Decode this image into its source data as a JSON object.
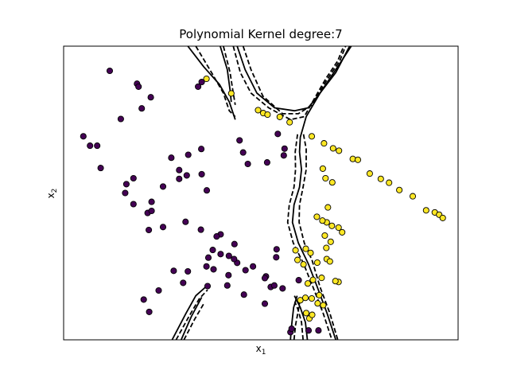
{
  "chart_data": {
    "type": "scatter",
    "title": "Polynomial Kernel degree:7",
    "xlabel_main": "x",
    "xlabel_sub": "1",
    "ylabel_main": "x",
    "ylabel_sub": "2",
    "xlim": [
      0,
      100
    ],
    "ylim": [
      0,
      100
    ],
    "xticks": [],
    "yticks": [],
    "grid": false,
    "colors": {
      "class_0": "#440154",
      "class_1": "#fde725",
      "edge": "#000000",
      "boundary": "#000000"
    },
    "series": [
      {
        "points": [
          [
            11.7,
            91.6
          ],
          [
            18.6,
            87.2
          ],
          [
            14.5,
            75.2
          ],
          [
            5.0,
            69.3
          ],
          [
            6.7,
            66.1
          ],
          [
            8.5,
            66.1
          ],
          [
            9.4,
            58.5
          ],
          [
            19.0,
            86.2
          ],
          [
            19.8,
            78.8
          ],
          [
            34.1,
            86.2
          ],
          [
            35.0,
            87.8
          ],
          [
            34.9,
            65.0
          ],
          [
            31.6,
            63.0
          ],
          [
            27.3,
            62.0
          ],
          [
            44.6,
            67.9
          ],
          [
            46.7,
            59.9
          ],
          [
            45.5,
            63.8
          ],
          [
            54.3,
            70.1
          ],
          [
            56.0,
            65.1
          ],
          [
            55.8,
            62.8
          ],
          [
            51.6,
            60.4
          ],
          [
            22.1,
            82.6
          ],
          [
            17.7,
            55.0
          ],
          [
            15.9,
            53.0
          ],
          [
            15.6,
            50.0
          ],
          [
            25.2,
            52.2
          ],
          [
            29.3,
            54.8
          ],
          [
            36.3,
            50.9
          ],
          [
            21.3,
            43.2
          ],
          [
            17.7,
            46.2
          ],
          [
            22.3,
            47.0
          ],
          [
            22.3,
            43.9
          ],
          [
            25.2,
            38.4
          ],
          [
            30.9,
            40.2
          ],
          [
            34.8,
            37.5
          ],
          [
            39.8,
            35.9
          ],
          [
            43.3,
            32.6
          ],
          [
            21.6,
            37.4
          ],
          [
            38.8,
            35.2
          ],
          [
            37.8,
            30.6
          ],
          [
            39.8,
            29.2
          ],
          [
            41.9,
            28.6
          ],
          [
            36.7,
            28.0
          ],
          [
            44.0,
            26.2
          ],
          [
            41.8,
            22.0
          ],
          [
            48.0,
            25.0
          ],
          [
            38.0,
            24.0
          ],
          [
            43.2,
            27.5
          ],
          [
            46.1,
            23.7
          ],
          [
            51.3,
            21.6
          ],
          [
            53.9,
            28.1
          ],
          [
            57.5,
            2.6
          ],
          [
            64.6,
            3.2
          ],
          [
            59.6,
            20.3
          ],
          [
            52.5,
            18.0
          ],
          [
            55.5,
            17.5
          ],
          [
            36.5,
            18.3
          ],
          [
            41.5,
            18.5
          ],
          [
            51.0,
            21.0
          ],
          [
            30.3,
            19.4
          ],
          [
            36.2,
            25.0
          ],
          [
            31.5,
            23.3
          ],
          [
            20.3,
            13.7
          ],
          [
            21.7,
            9.5
          ],
          [
            57.8,
            3.8
          ],
          [
            62.1,
            3.2
          ],
          [
            54.0,
            30.8
          ],
          [
            45.7,
            15.4
          ],
          [
            51.0,
            12.3
          ],
          [
            24.1,
            16.8
          ],
          [
            27.9,
            23.5
          ],
          [
            35.0,
            56.4
          ],
          [
            31.2,
            56.0
          ],
          [
            29.3,
            57.8
          ],
          [
            53.4,
            18.5
          ]
        ]
      },
      {
        "points": [
          [
            36.2,
            88.9
          ],
          [
            42.5,
            83.9
          ],
          [
            49.3,
            78.2
          ],
          [
            50.6,
            77.2
          ],
          [
            51.7,
            76.7
          ],
          [
            54.8,
            75.9
          ],
          [
            57.3,
            74.1
          ],
          [
            62.9,
            69.3
          ],
          [
            66.0,
            66.9
          ],
          [
            68.3,
            65.2
          ],
          [
            69.8,
            64.4
          ],
          [
            73.3,
            61.6
          ],
          [
            74.6,
            61.3
          ],
          [
            77.6,
            56.6
          ],
          [
            80.4,
            54.8
          ],
          [
            82.5,
            53.5
          ],
          [
            85.1,
            51.0
          ],
          [
            88.5,
            48.9
          ],
          [
            91.9,
            44.1
          ],
          [
            94.1,
            43.4
          ],
          [
            95.2,
            42.6
          ],
          [
            96.1,
            41.5
          ],
          [
            65.7,
            58.3
          ],
          [
            66.4,
            55.0
          ],
          [
            68.1,
            53.6
          ],
          [
            67.0,
            45.1
          ],
          [
            66.7,
            40.0
          ],
          [
            65.6,
            40.6
          ],
          [
            64.2,
            41.9
          ],
          [
            66.2,
            35.5
          ],
          [
            68.0,
            38.8
          ],
          [
            69.7,
            38.2
          ],
          [
            70.6,
            36.6
          ],
          [
            67.7,
            33.4
          ],
          [
            66.6,
            31.3
          ],
          [
            66.7,
            27.5
          ],
          [
            62.6,
            29.6
          ],
          [
            61.4,
            31.0
          ],
          [
            58.8,
            30.5
          ],
          [
            59.3,
            27.2
          ],
          [
            60.8,
            25.7
          ],
          [
            64.3,
            26.3
          ],
          [
            67.5,
            26.7
          ],
          [
            69.7,
            19.7
          ],
          [
            65.4,
            21.1
          ],
          [
            63.2,
            20.4
          ],
          [
            61.9,
            19.2
          ],
          [
            62.9,
            14.1
          ],
          [
            64.4,
            12.4
          ],
          [
            65.8,
            11.8
          ],
          [
            62.3,
            7.3
          ],
          [
            61.5,
            9.1
          ],
          [
            63.0,
            8.5
          ],
          [
            60.0,
            13.5
          ],
          [
            61.3,
            14.3
          ],
          [
            64.8,
            15.2
          ],
          [
            68.9,
            20.0
          ]
        ]
      }
    ],
    "decision_lines": [
      {
        "style": "solid",
        "segments": [
          [
            [
              31.5,
              100
            ],
            [
              35.5,
              93
            ],
            [
              39.5,
              87
            ],
            [
              42.0,
              81
            ],
            [
              43.5,
              75
            ]
          ],
          [
            [
              39.7,
              100
            ],
            [
              41.5,
              92
            ],
            [
              42.2,
              85
            ],
            [
              42.5,
              81
            ]
          ],
          [
            [
              44.0,
              100
            ],
            [
              46.0,
              92
            ],
            [
              49.0,
              84
            ],
            [
              53.5,
              79
            ],
            [
              58.5,
              78
            ],
            [
              62.0,
              79
            ],
            [
              65.0,
              84
            ],
            [
              69.0,
              91
            ],
            [
              72.5,
              100
            ]
          ],
          [
            [
              72.9,
              100
            ],
            [
              69.0,
              92
            ],
            [
              65.0,
              84
            ],
            [
              61.5,
              76
            ],
            [
              60.0,
              69
            ],
            [
              59.8,
              64
            ],
            [
              60.3,
              58
            ],
            [
              59.8,
              52
            ],
            [
              58.4,
              46
            ],
            [
              58.0,
              40
            ],
            [
              59.5,
              33
            ],
            [
              62.0,
              26
            ],
            [
              64.3,
              18
            ],
            [
              66.8,
              9
            ],
            [
              69.0,
              0
            ]
          ],
          [
            [
              27.5,
              0
            ],
            [
              31.0,
              9
            ],
            [
              33.5,
              15
            ],
            [
              36.0,
              18
            ]
          ],
          [
            [
              29.8,
              0
            ],
            [
              32.4,
              8
            ],
            [
              35.0,
              14.5
            ]
          ],
          [
            [
              57.5,
              0
            ],
            [
              57.8,
              5
            ],
            [
              58.3,
              11
            ],
            [
              59.2,
              15
            ]
          ],
          [
            [
              61.8,
              0
            ],
            [
              61.3,
              6
            ],
            [
              60.0,
              11
            ],
            [
              58.5,
              15
            ]
          ]
        ]
      },
      {
        "style": "dashed",
        "segments": [
          [
            [
              33.5,
              100
            ],
            [
              37.5,
              91
            ],
            [
              40.5,
              84
            ],
            [
              42.0,
              78
            ],
            [
              43.5,
              76
            ]
          ],
          [
            [
              40.5,
              100
            ],
            [
              42.2,
              91
            ],
            [
              43.0,
              84
            ],
            [
              43.5,
              80
            ]
          ],
          [
            [
              45.5,
              100
            ],
            [
              47.5,
              92
            ],
            [
              50.5,
              83
            ],
            [
              55.5,
              77
            ],
            [
              59.5,
              77
            ],
            [
              63.0,
              80
            ],
            [
              66.5,
              88
            ],
            [
              70.0,
              95
            ],
            [
              71.5,
              100
            ]
          ],
          [
            [
              43.0,
              100
            ],
            [
              44.8,
              91
            ],
            [
              47.5,
              84
            ],
            [
              52.0,
              79
            ],
            [
              57.5,
              75
            ],
            [
              61.0,
              76
            ],
            [
              63.5,
              82
            ],
            [
              66.5,
              89
            ],
            [
              69.5,
              95
            ],
            [
              71.0,
              100
            ]
          ],
          [
            [
              60.8,
              70
            ],
            [
              61.5,
              65
            ],
            [
              61.5,
              58
            ],
            [
              60.7,
              52
            ],
            [
              59.8,
              46
            ],
            [
              59.7,
              40
            ],
            [
              61.0,
              33
            ],
            [
              63.0,
              27
            ],
            [
              65.0,
              18
            ],
            [
              67.5,
              9
            ],
            [
              69.5,
              0
            ]
          ],
          [
            [
              59.3,
              70
            ],
            [
              58.7,
              64
            ],
            [
              58.8,
              58
            ],
            [
              58.4,
              52
            ],
            [
              57.2,
              46
            ],
            [
              56.8,
              40
            ],
            [
              58.2,
              33
            ],
            [
              60.8,
              26
            ],
            [
              63.2,
              18
            ],
            [
              65.8,
              9
            ],
            [
              68.0,
              0
            ]
          ],
          [
            [
              28.5,
              0
            ],
            [
              31.8,
              8
            ],
            [
              34.4,
              14
            ],
            [
              36.5,
              17
            ]
          ],
          [
            [
              30.5,
              0
            ],
            [
              33.2,
              7
            ],
            [
              35.6,
              12.5
            ]
          ],
          [
            [
              58.4,
              0
            ],
            [
              58.8,
              5
            ],
            [
              59.5,
              10
            ],
            [
              60.0,
              14
            ]
          ],
          [
            [
              60.7,
              0
            ],
            [
              60.3,
              6
            ],
            [
              59.5,
              10
            ],
            [
              58.6,
              13
            ]
          ]
        ]
      }
    ]
  }
}
